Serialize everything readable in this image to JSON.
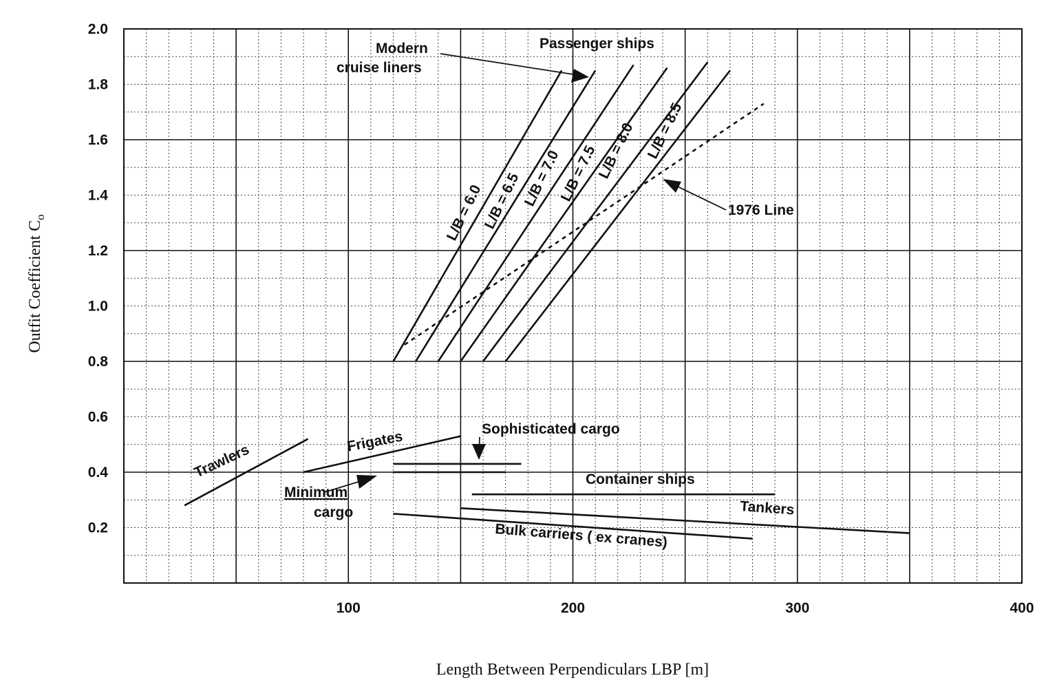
{
  "chart_data": {
    "type": "line",
    "title": "",
    "xlabel": "Length Between Perpendiculars LBP [m]",
    "ylabel": "Outfit Coefficient C",
    "ylabel_subscript": "o",
    "xlim": [
      0,
      400
    ],
    "ylim": [
      0,
      2.0
    ],
    "xticks": [
      "100",
      "200",
      "300",
      "400"
    ],
    "yticks": [
      "0.2",
      "0.4",
      "0.6",
      "0.8",
      "1.0",
      "1.2",
      "1.4",
      "1.6",
      "1.8",
      "2.0"
    ],
    "grid": true,
    "series": [
      {
        "name": "L/B = 6.0",
        "style": "solid",
        "points": [
          [
            120,
            0.8
          ],
          [
            195,
            1.85
          ]
        ]
      },
      {
        "name": "L/B = 6.5",
        "style": "solid",
        "points": [
          [
            130,
            0.8
          ],
          [
            210,
            1.85
          ]
        ]
      },
      {
        "name": "L/B = 7.0",
        "style": "solid",
        "points": [
          [
            140,
            0.8
          ],
          [
            227,
            1.87
          ]
        ]
      },
      {
        "name": "L/B = 7.5",
        "style": "solid",
        "points": [
          [
            150,
            0.8
          ],
          [
            242,
            1.86
          ]
        ]
      },
      {
        "name": "L/B = 8.0",
        "style": "solid",
        "points": [
          [
            160,
            0.8
          ],
          [
            260,
            1.88
          ]
        ]
      },
      {
        "name": "L/B = 8.5",
        "style": "solid",
        "points": [
          [
            170,
            0.8
          ],
          [
            270,
            1.85
          ]
        ]
      },
      {
        "name": "1976 Line",
        "style": "dotted",
        "points": [
          [
            125,
            0.86
          ],
          [
            285,
            1.73
          ]
        ]
      },
      {
        "name": "Trawlers",
        "style": "solid",
        "points": [
          [
            27,
            0.28
          ],
          [
            82,
            0.52
          ]
        ]
      },
      {
        "name": "Frigates",
        "style": "solid",
        "points": [
          [
            80,
            0.4
          ],
          [
            150,
            0.53
          ]
        ]
      },
      {
        "name": "Sophisticated cargo",
        "style": "solid",
        "points": [
          [
            120,
            0.43
          ],
          [
            177,
            0.43
          ]
        ]
      },
      {
        "name": "Minimum cargo",
        "style": "solid",
        "points": [
          [
            120,
            0.4
          ],
          [
            170,
            0.4
          ]
        ]
      },
      {
        "name": "Container ships",
        "style": "solid",
        "points": [
          [
            155,
            0.32
          ],
          [
            290,
            0.32
          ]
        ]
      },
      {
        "name": "Tankers",
        "style": "solid",
        "points": [
          [
            150,
            0.27
          ],
          [
            350,
            0.18
          ]
        ]
      },
      {
        "name": "Bulk carriers ( ex cranes)",
        "style": "solid",
        "points": [
          [
            120,
            0.25
          ],
          [
            280,
            0.16
          ]
        ]
      }
    ],
    "annotations": {
      "passenger_ships": "Passenger ships",
      "modern_cruise_line1": "Modern",
      "modern_cruise_line2": "cruise liners",
      "lb60": "L/B = 6.0",
      "lb65": "L/B = 6.5",
      "lb70": "L/B = 7.0",
      "lb75": "L/B = 7.5",
      "lb80": "L/B = 8.0",
      "lb85": "L/B = 8.5",
      "line1976": "1976 Line",
      "trawlers": "Trawlers",
      "frigates": "Frigates",
      "sophisticated_cargo": "Sophisticated cargo",
      "minimum_line1": "Minimum",
      "minimum_line2": "cargo",
      "container_ships": "Container ships",
      "tankers": "Tankers",
      "bulk_carriers": "Bulk carriers ( ex cranes)"
    }
  }
}
